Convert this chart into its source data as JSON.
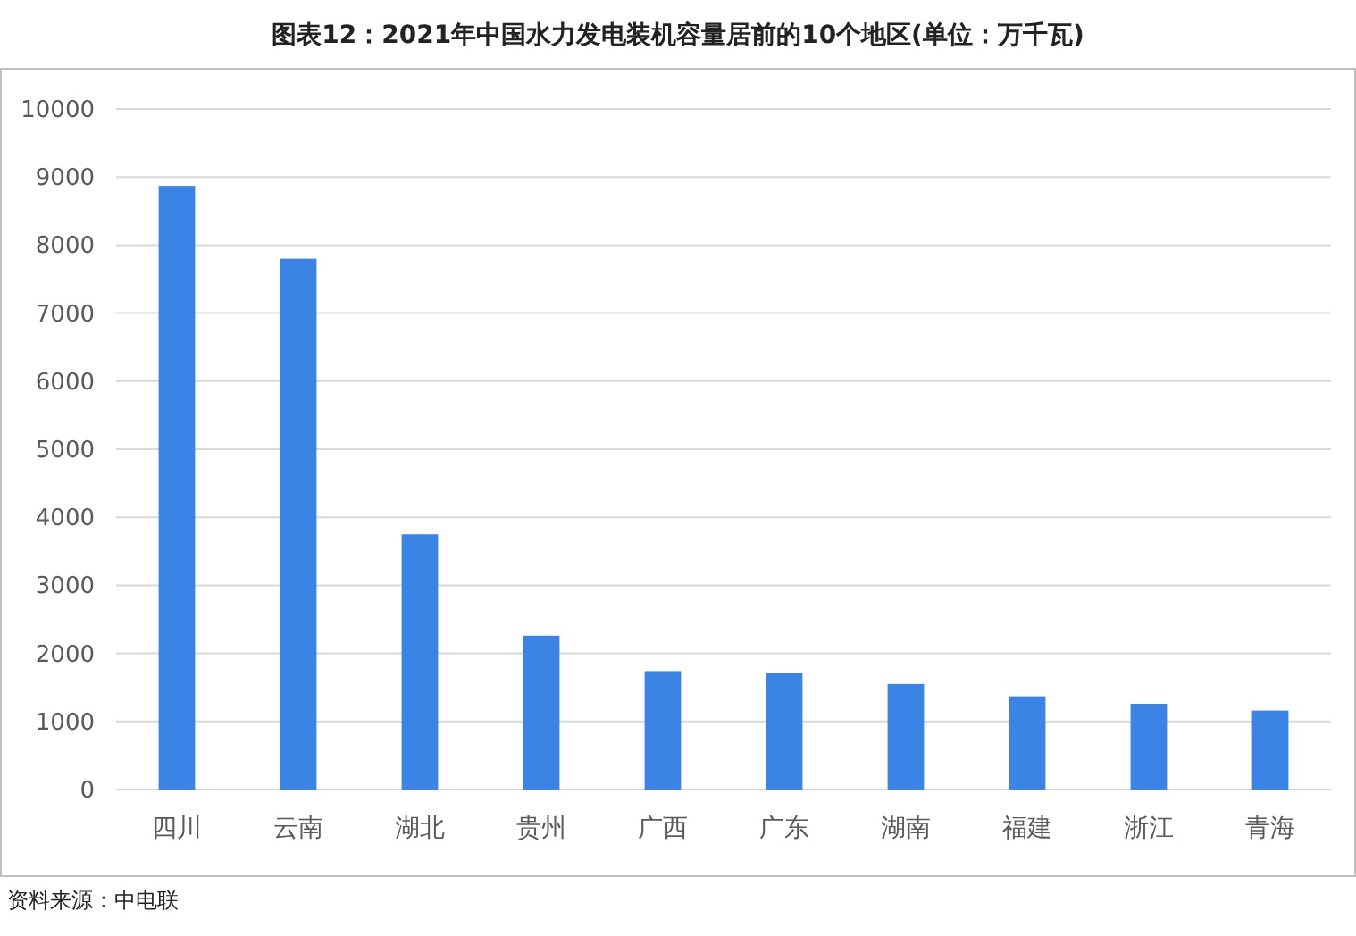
{
  "chart_data": {
    "type": "bar",
    "title": "图表12：2021年中国水力发电装机容量居前的10个地区(单位：万千瓦)",
    "categories": [
      "四川",
      "云南",
      "湖北",
      "贵州",
      "广西",
      "广东",
      "湖南",
      "福建",
      "浙江",
      "青海"
    ],
    "values": [
      8870,
      7800,
      3750,
      2260,
      1740,
      1710,
      1550,
      1370,
      1260,
      1160
    ],
    "color": "#3a84e6",
    "ylim": [
      0,
      10000
    ],
    "yticks": [
      0,
      1000,
      2000,
      3000,
      4000,
      5000,
      6000,
      7000,
      8000,
      9000,
      10000
    ],
    "grid": "y",
    "annotations": [
      "资料来源：中电联"
    ]
  }
}
